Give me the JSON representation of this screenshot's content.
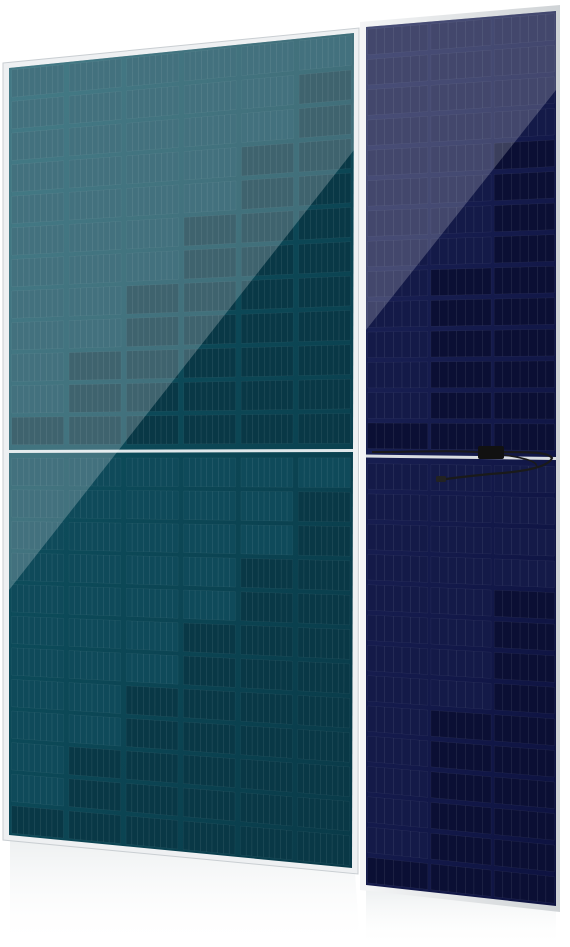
{
  "image": {
    "subject": "solar-panels",
    "colors": {
      "front_cell": "#0f4a5a",
      "front_cell_dark": "#093846",
      "rear_cell": "#141a48",
      "rear_cell_dark": "#0b0f34",
      "frame": "#e6e8ea",
      "grid_line": "#dfe7ea",
      "background": "#ffffff",
      "cable": "#1a1a1a"
    }
  }
}
